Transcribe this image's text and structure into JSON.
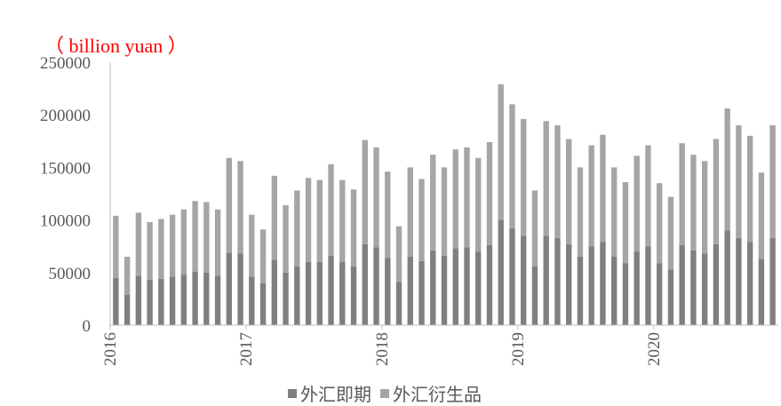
{
  "chart_data": {
    "type": "bar",
    "stacked": true,
    "unit_label": "（ billion yuan ）",
    "ylim": [
      0,
      250000
    ],
    "y_ticks": [
      "0",
      "50000",
      "100000",
      "150000",
      "200000",
      "250000"
    ],
    "x_tick_labels": [
      "2016",
      "2017",
      "2018",
      "2019",
      "2020"
    ],
    "legend_position": "bottom",
    "grid": false,
    "series": [
      {
        "name": "外汇即期",
        "color": "#7f7f7f",
        "values": [
          45000,
          29000,
          47000,
          43000,
          44000,
          46000,
          48000,
          51000,
          50000,
          47000,
          69000,
          68000,
          46000,
          40000,
          62000,
          50000,
          56000,
          60000,
          60000,
          66000,
          60000,
          56000,
          77000,
          74000,
          64000,
          41000,
          65000,
          61000,
          71000,
          66000,
          73000,
          74000,
          70000,
          76000,
          100000,
          92000,
          85000,
          56000,
          85000,
          83000,
          77000,
          65000,
          75000,
          79000,
          65000,
          59000,
          70000,
          75000,
          59000,
          53000,
          76000,
          71000,
          68000,
          77000,
          90000,
          83000,
          79000,
          63000,
          83000
        ]
      },
      {
        "name": "外汇衍生品",
        "color": "#a5a5a5",
        "values": [
          59000,
          36000,
          60000,
          55000,
          57000,
          59000,
          62000,
          67000,
          67000,
          63000,
          90000,
          88000,
          59000,
          51000,
          80000,
          64000,
          72000,
          80000,
          78000,
          87000,
          78000,
          73000,
          99000,
          95000,
          82000,
          53000,
          85000,
          78000,
          91000,
          84000,
          94000,
          95000,
          89000,
          98000,
          129000,
          118000,
          111000,
          72000,
          109000,
          107000,
          100000,
          85000,
          96000,
          102000,
          85000,
          77000,
          91000,
          96000,
          76000,
          69000,
          97000,
          91000,
          88000,
          100000,
          116000,
          107000,
          101000,
          82000,
          107000
        ]
      }
    ]
  }
}
